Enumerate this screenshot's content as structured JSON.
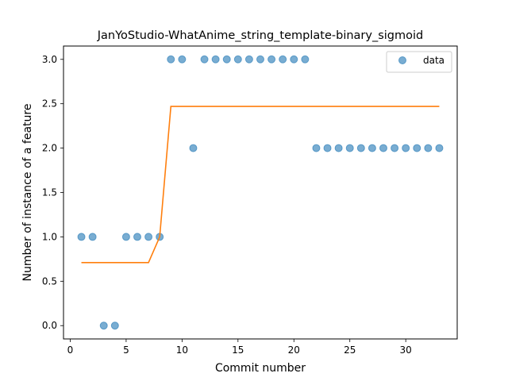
{
  "chart_data": {
    "type": "scatter",
    "title": "JanYoStudio-WhatAnime_string_template-binary_sigmoid",
    "xlabel": "Commit number",
    "ylabel": "Number of instance of a feature",
    "xlim": [
      -0.6,
      34.6
    ],
    "ylim": [
      -0.15,
      3.15
    ],
    "x_ticks": [
      0,
      5,
      10,
      15,
      20,
      25,
      30
    ],
    "x_tick_labels": [
      "0",
      "5",
      "10",
      "15",
      "20",
      "25",
      "30"
    ],
    "y_ticks": [
      0.0,
      0.5,
      1.0,
      1.5,
      2.0,
      2.5,
      3.0
    ],
    "y_tick_labels": [
      "0.0",
      "0.5",
      "1.0",
      "1.5",
      "2.0",
      "2.5",
      "3.0"
    ],
    "grid": false,
    "legend_position": "top-right",
    "series": [
      {
        "name": "data",
        "kind": "scatter",
        "color": "#1f77b4",
        "x": [
          1,
          2,
          3,
          4,
          5,
          6,
          7,
          8,
          9,
          10,
          11,
          12,
          13,
          14,
          15,
          16,
          17,
          18,
          19,
          20,
          21,
          22,
          23,
          24,
          25,
          26,
          27,
          28,
          29,
          30,
          31,
          32,
          33
        ],
        "y": [
          1,
          1,
          0,
          0,
          1,
          1,
          1,
          1,
          3,
          3,
          2,
          3,
          3,
          3,
          3,
          3,
          3,
          3,
          3,
          3,
          3,
          2,
          2,
          2,
          2,
          2,
          2,
          2,
          2,
          2,
          2,
          2,
          2
        ]
      },
      {
        "kind": "line",
        "color": "#ff7f0e",
        "x": [
          1,
          2,
          3,
          4,
          5,
          6,
          7,
          8,
          9,
          10,
          11,
          12,
          13,
          14,
          15,
          16,
          17,
          18,
          19,
          20,
          21,
          22,
          23,
          24,
          25,
          26,
          27,
          28,
          29,
          30,
          31,
          32,
          33
        ],
        "y": [
          0.71,
          0.71,
          0.71,
          0.71,
          0.71,
          0.71,
          0.71,
          1.0,
          2.47,
          2.47,
          2.47,
          2.47,
          2.47,
          2.47,
          2.47,
          2.47,
          2.47,
          2.47,
          2.47,
          2.47,
          2.47,
          2.47,
          2.47,
          2.47,
          2.47,
          2.47,
          2.47,
          2.47,
          2.47,
          2.47,
          2.47,
          2.47,
          2.47
        ]
      }
    ]
  }
}
